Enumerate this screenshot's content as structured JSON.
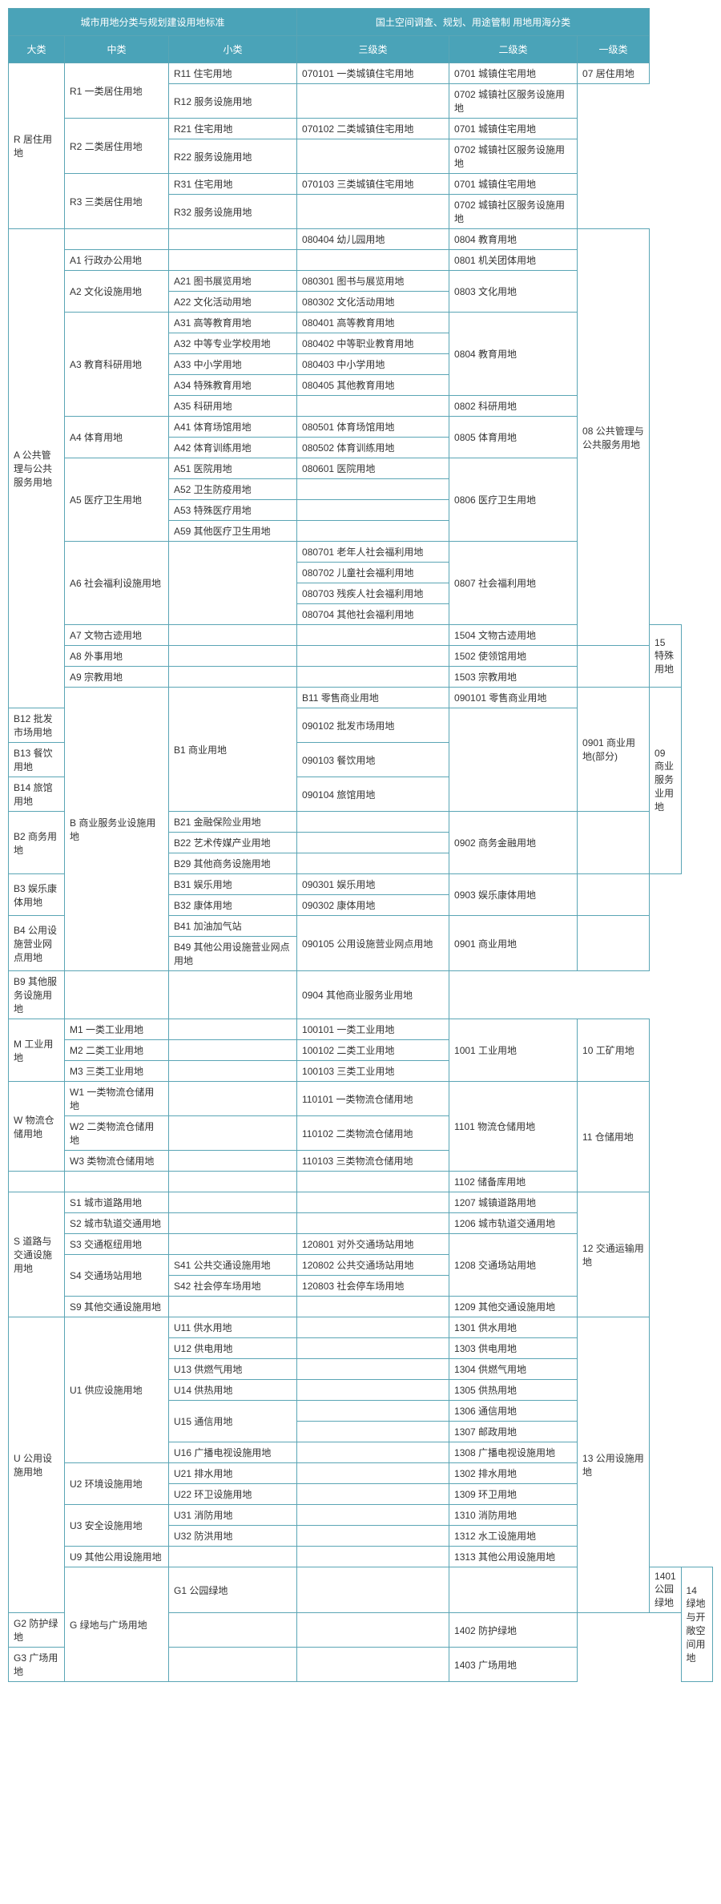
{
  "header": {
    "left_group": "城市用地分类与规划建设用地标准",
    "right_group": "国土空间调查、规划、用途管制\n用地用海分类",
    "cols": [
      "大类",
      "中类",
      "小类",
      "三级类",
      "二级类",
      "一级类"
    ]
  },
  "rows": [
    [
      "R 居住用地",
      "R1 一类居住用地",
      "R11 住宅用地",
      "070101 一类城镇住宅用地",
      "0701 城镇住宅用地",
      "07 居住用地",
      6,
      2,
      1,
      1,
      1,
      1
    ],
    [
      "",
      "",
      "R12 服务设施用地",
      "",
      "0702 城镇社区服务设施用地",
      "",
      0,
      0,
      1,
      1,
      1,
      0
    ],
    [
      "",
      "R2 二类居住用地",
      "R21 住宅用地",
      "070102 二类城镇住宅用地",
      "0701 城镇住宅用地",
      "",
      0,
      2,
      1,
      1,
      1,
      0
    ],
    [
      "",
      "",
      "R22 服务设施用地",
      "",
      "0702 城镇社区服务设施用地",
      "",
      0,
      0,
      1,
      1,
      1,
      0
    ],
    [
      "",
      "R3 三类居住用地",
      "R31 住宅用地",
      "070103 三类城镇住宅用地",
      "0701 城镇住宅用地",
      "",
      0,
      2,
      1,
      1,
      1,
      0
    ],
    [
      "",
      "",
      "R32 服务设施用地",
      "",
      "0702 城镇社区服务设施用地",
      "",
      0,
      0,
      1,
      1,
      1,
      0
    ],
    [
      "A 公共管理与公共服务用地",
      "",
      "",
      "080404 幼儿园用地",
      "0804 教育用地",
      "08 公共管理与公共服务用地",
      23,
      1,
      1,
      1,
      1,
      20
    ],
    [
      "",
      "A1 行政办公用地",
      "",
      "",
      "0801 机关团体用地",
      "",
      0,
      1,
      1,
      1,
      1,
      0
    ],
    [
      "",
      "A2 文化设施用地",
      "A21 图书展览用地",
      "080301 图书与展览用地",
      "0803 文化用地",
      "",
      0,
      2,
      1,
      1,
      2,
      0
    ],
    [
      "",
      "",
      "A22 文化活动用地",
      "080302 文化活动用地",
      "",
      "",
      0,
      0,
      1,
      1,
      0,
      0
    ],
    [
      "",
      "A3 教育科研用地",
      "A31 高等教育用地",
      "080401 高等教育用地",
      "0804 教育用地",
      "",
      0,
      5,
      1,
      1,
      4,
      0
    ],
    [
      "",
      "",
      "A32 中等专业学校用地",
      "080402 中等职业教育用地",
      "",
      "",
      0,
      0,
      1,
      1,
      0,
      0
    ],
    [
      "",
      "",
      "A33 中小学用地",
      "080403 中小学用地",
      "",
      "",
      0,
      0,
      1,
      1,
      0,
      0
    ],
    [
      "",
      "",
      "A34 特殊教育用地",
      "080405 其他教育用地",
      "",
      "",
      0,
      0,
      1,
      1,
      0,
      0
    ],
    [
      "",
      "",
      "A35 科研用地",
      "",
      "0802 科研用地",
      "",
      0,
      0,
      1,
      1,
      1,
      0
    ],
    [
      "",
      "A4 体育用地",
      "A41 体育场馆用地",
      "080501 体育场馆用地",
      "0805 体育用地",
      "",
      0,
      2,
      1,
      1,
      2,
      0
    ],
    [
      "",
      "",
      "A42 体育训练用地",
      "080502 体育训练用地",
      "",
      "",
      0,
      0,
      1,
      1,
      0,
      0
    ],
    [
      "",
      "A5 医疗卫生用地",
      "A51 医院用地",
      "080601 医院用地",
      "0806 医疗卫生用地",
      "",
      0,
      4,
      1,
      1,
      4,
      0
    ],
    [
      "",
      "",
      "A52 卫生防疫用地",
      "",
      "",
      "",
      0,
      0,
      1,
      1,
      0,
      0
    ],
    [
      "",
      "",
      "A53 特殊医疗用地",
      "",
      "",
      "",
      0,
      0,
      1,
      1,
      0,
      0
    ],
    [
      "",
      "",
      "A59 其他医疗卫生用地",
      "",
      "",
      "",
      0,
      0,
      1,
      1,
      0,
      0
    ],
    [
      "",
      "A6 社会福利设施用地",
      "",
      "080701 老年人社会福利用地",
      "0807 社会福利用地",
      "",
      0,
      4,
      4,
      1,
      4,
      0
    ],
    [
      "",
      "",
      "",
      "080702 儿童社会福利用地",
      "",
      "",
      0,
      0,
      0,
      1,
      0,
      0
    ],
    [
      "",
      "",
      "",
      "080703 残疾人社会福利用地",
      "",
      "",
      0,
      0,
      0,
      1,
      0,
      0
    ],
    [
      "",
      "",
      "",
      "080704 其他社会福利用地",
      "",
      "",
      0,
      0,
      0,
      1,
      0,
      0
    ],
    [
      "",
      "A7 文物古迹用地",
      "",
      "",
      "1504 文物古迹用地",
      "15 特殊用地",
      0,
      1,
      1,
      1,
      1,
      3
    ],
    [
      "",
      "A8 外事用地",
      "",
      "",
      "1502 使领馆用地",
      "",
      0,
      1,
      1,
      1,
      1,
      0
    ],
    [
      "",
      "A9 宗教用地",
      "",
      "",
      "1503 宗教用地",
      "",
      0,
      1,
      1,
      1,
      1,
      0
    ],
    [
      "B 商业服务业设施用地",
      "B1 商业用地",
      "B11 零售商业用地",
      "090101 零售商业用地",
      "0901 商业用地(部分)",
      "09 商业服务业用地",
      11,
      4,
      1,
      1,
      4,
      7
    ],
    [
      "",
      "",
      "B12 批发市场用地",
      "090102 批发市场用地",
      "",
      "",
      0,
      0,
      1,
      1,
      0,
      0
    ],
    [
      "",
      "",
      "B13 餐饮用地",
      "090103 餐饮用地",
      "",
      "",
      0,
      0,
      1,
      1,
      0,
      0
    ],
    [
      "",
      "",
      "B14 旅馆用地",
      "090104 旅馆用地",
      "",
      "",
      0,
      0,
      1,
      1,
      0,
      0
    ],
    [
      "",
      "B2 商务用地",
      "B21 金融保险业用地",
      "",
      "0902 商务金融用地",
      "",
      0,
      3,
      1,
      1,
      3,
      0
    ],
    [
      "",
      "",
      "B22 艺术传媒产业用地",
      "",
      "",
      "",
      0,
      0,
      1,
      1,
      0,
      0
    ],
    [
      "",
      "",
      "B29 其他商务设施用地",
      "",
      "",
      "",
      0,
      0,
      1,
      1,
      0,
      0
    ],
    [
      "",
      "B3 娱乐康体用地",
      "B31 娱乐用地",
      "090301 娱乐用地",
      "0903 娱乐康体用地",
      "",
      0,
      2,
      1,
      1,
      2,
      2
    ],
    [
      "",
      "",
      "B32 康体用地",
      "090302 康体用地",
      "",
      "",
      0,
      0,
      1,
      1,
      0,
      0
    ],
    [
      "",
      "B4 公用设施营业网点用地",
      "B41 加油加气站",
      "090105 公用设施营业网点用地",
      "0901 商业用地",
      "",
      0,
      2,
      1,
      2,
      2,
      2
    ],
    [
      "",
      "",
      "B49 其他公用设施营业网点用地",
      "",
      "",
      "",
      0,
      0,
      1,
      0,
      0,
      0
    ],
    [
      "",
      "B9 其他服务设施用地",
      "",
      "",
      "0904 其他商业服务业用地",
      "",
      0,
      1,
      1,
      1,
      1,
      0
    ],
    [
      "M 工业用地",
      "M1 一类工业用地",
      "",
      "100101 一类工业用地",
      "1001 工业用地",
      "10 工矿用地",
      3,
      1,
      1,
      1,
      3,
      3
    ],
    [
      "",
      "M2 二类工业用地",
      "",
      "100102 二类工业用地",
      "",
      "",
      0,
      1,
      1,
      1,
      0,
      0
    ],
    [
      "",
      "M3 三类工业用地",
      "",
      "100103 三类工业用地",
      "",
      "",
      0,
      1,
      1,
      1,
      0,
      0
    ],
    [
      "W 物流仓储用地",
      "W1 一类物流仓储用地",
      "",
      "110101 一类物流仓储用地",
      "1101 物流仓储用地",
      "11 仓储用地",
      3,
      1,
      1,
      1,
      3,
      4
    ],
    [
      "",
      "W2 二类物流仓储用地",
      "",
      "110102 二类物流仓储用地",
      "",
      "",
      0,
      1,
      1,
      1,
      0,
      0
    ],
    [
      "",
      "W3 类物流仓储用地",
      "",
      "110103 三类物流仓储用地",
      "",
      "",
      0,
      1,
      1,
      1,
      0,
      0
    ],
    [
      "",
      "",
      "",
      "",
      "1102 储备库用地",
      "",
      1,
      1,
      1,
      1,
      1,
      0
    ],
    [
      "S 道路与交通设施用地",
      "S1 城市道路用地",
      "",
      "",
      "1207 城镇道路用地",
      "12 交通运输用地",
      6,
      1,
      1,
      1,
      1,
      6
    ],
    [
      "",
      "S2 城市轨道交通用地",
      "",
      "",
      "1206 城市轨道交通用地",
      "",
      0,
      1,
      1,
      1,
      1,
      0
    ],
    [
      "",
      "S3 交通枢纽用地",
      "",
      "120801 对外交通场站用地",
      "1208 交通场站用地",
      "",
      0,
      1,
      1,
      1,
      3,
      0
    ],
    [
      "",
      "S4 交通场站用地",
      "S41 公共交通设施用地",
      "120802 公共交通场站用地",
      "",
      "",
      0,
      2,
      1,
      1,
      0,
      0
    ],
    [
      "",
      "",
      "S42 社会停车场用地",
      "120803 社会停车场用地",
      "",
      "",
      0,
      0,
      1,
      1,
      0,
      0
    ],
    [
      "",
      "S9 其他交通设施用地",
      "",
      "",
      "1209 其他交通设施用地",
      "",
      0,
      1,
      1,
      1,
      1,
      0
    ],
    [
      "U 公用设施用地",
      "U1 供应设施用地",
      "U11 供水用地",
      "",
      "1301 供水用地",
      "13 公用设施用地",
      13,
      7,
      1,
      1,
      1,
      13
    ],
    [
      "",
      "",
      "U12 供电用地",
      "",
      "1303 供电用地",
      "",
      0,
      0,
      1,
      1,
      1,
      0
    ],
    [
      "",
      "",
      "U13 供燃气用地",
      "",
      "1304 供燃气用地",
      "",
      0,
      0,
      1,
      1,
      1,
      0
    ],
    [
      "",
      "",
      "U14 供热用地",
      "",
      "1305 供热用地",
      "",
      0,
      0,
      1,
      1,
      1,
      0
    ],
    [
      "",
      "",
      "U15 通信用地",
      "",
      "1306 通信用地",
      "",
      0,
      0,
      2,
      1,
      1,
      0
    ],
    [
      "",
      "",
      "",
      "",
      "1307 邮政用地",
      "",
      0,
      0,
      0,
      1,
      1,
      0
    ],
    [
      "",
      "",
      "U16 广播电视设施用地",
      "",
      "1308 广播电视设施用地",
      "",
      0,
      0,
      1,
      1,
      1,
      0
    ],
    [
      "",
      "U2 环境设施用地",
      "U21 排水用地",
      "",
      "1302 排水用地",
      "",
      0,
      2,
      1,
      1,
      1,
      0
    ],
    [
      "",
      "",
      "U22 环卫设施用地",
      "",
      "1309 环卫用地",
      "",
      0,
      0,
      1,
      1,
      1,
      0
    ],
    [
      "",
      "U3 安全设施用地",
      "U31 消防用地",
      "",
      "1310 消防用地",
      "",
      0,
      2,
      1,
      1,
      1,
      0
    ],
    [
      "",
      "",
      "U32 防洪用地",
      "",
      "1312 水工设施用地",
      "",
      0,
      0,
      1,
      1,
      1,
      0
    ],
    [
      "",
      "U9 其他公用设施用地",
      "",
      "",
      "1313 其他公用设施用地",
      "",
      0,
      1,
      1,
      1,
      1,
      0
    ],
    [
      "G 绿地与广场用地",
      "G1 公园绿地",
      "",
      "",
      "1401 公园绿地",
      "14 绿地与开敞空间用地",
      3,
      1,
      1,
      1,
      1,
      3
    ],
    [
      "",
      "G2 防护绿地",
      "",
      "",
      "1402 防护绿地",
      "",
      0,
      1,
      1,
      1,
      1,
      0
    ],
    [
      "",
      "G3 广场用地",
      "",
      "",
      "1403 广场用地",
      "",
      0,
      1,
      1,
      1,
      1,
      0
    ]
  ]
}
